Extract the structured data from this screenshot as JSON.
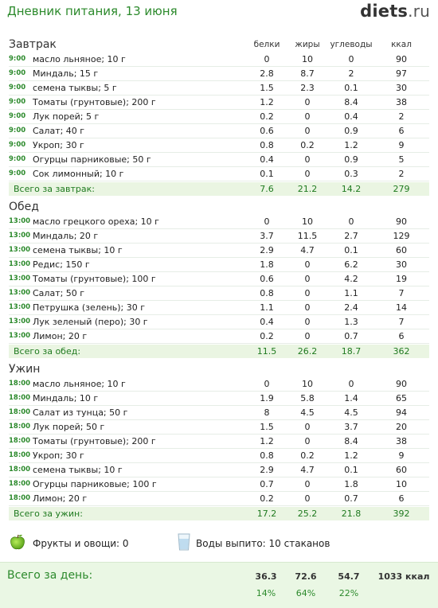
{
  "header": {
    "title": "Дневник питания, 13 июня",
    "logo_main": "diets",
    "logo_tld": ".ru"
  },
  "columns": {
    "protein": "белки",
    "fat": "жиры",
    "carbs": "углеводы",
    "kcal": "ккал"
  },
  "meals": [
    {
      "name": "Завтрак",
      "items": [
        {
          "time": "9:00",
          "name": "масло льняное; 10 г",
          "protein": "0",
          "fat": "10",
          "carbs": "0",
          "kcal": "90"
        },
        {
          "time": "9:00",
          "name": "Миндаль; 15 г",
          "protein": "2.8",
          "fat": "8.7",
          "carbs": "2",
          "kcal": "97"
        },
        {
          "time": "9:00",
          "name": "семена тыквы; 5 г",
          "protein": "1.5",
          "fat": "2.3",
          "carbs": "0.1",
          "kcal": "30"
        },
        {
          "time": "9:00",
          "name": "Томаты (грунтовые); 200 г",
          "protein": "1.2",
          "fat": "0",
          "carbs": "8.4",
          "kcal": "38"
        },
        {
          "time": "9:00",
          "name": "Лук порей; 5 г",
          "protein": "0.2",
          "fat": "0",
          "carbs": "0.4",
          "kcal": "2"
        },
        {
          "time": "9:00",
          "name": "Салат; 40 г",
          "protein": "0.6",
          "fat": "0",
          "carbs": "0.9",
          "kcal": "6"
        },
        {
          "time": "9:00",
          "name": "Укроп; 30 г",
          "protein": "0.8",
          "fat": "0.2",
          "carbs": "1.2",
          "kcal": "9"
        },
        {
          "time": "9:00",
          "name": "Огурцы парниковые; 50 г",
          "protein": "0.4",
          "fat": "0",
          "carbs": "0.9",
          "kcal": "5"
        },
        {
          "time": "9:00",
          "name": "Сок лимонный; 10 г",
          "protein": "0.1",
          "fat": "0",
          "carbs": "0.3",
          "kcal": "2"
        }
      ],
      "total": {
        "label": "Всего за завтрак:",
        "protein": "7.6",
        "fat": "21.2",
        "carbs": "14.2",
        "kcal": "279"
      }
    },
    {
      "name": "Обед",
      "items": [
        {
          "time": "13:00",
          "name": "масло грецкого ореха; 10 г",
          "protein": "0",
          "fat": "10",
          "carbs": "0",
          "kcal": "90"
        },
        {
          "time": "13:00",
          "name": "Миндаль; 20 г",
          "protein": "3.7",
          "fat": "11.5",
          "carbs": "2.7",
          "kcal": "129"
        },
        {
          "time": "13:00",
          "name": "семена тыквы; 10 г",
          "protein": "2.9",
          "fat": "4.7",
          "carbs": "0.1",
          "kcal": "60"
        },
        {
          "time": "13:00",
          "name": "Редис; 150 г",
          "protein": "1.8",
          "fat": "0",
          "carbs": "6.2",
          "kcal": "30"
        },
        {
          "time": "13:00",
          "name": "Томаты (грунтовые); 100 г",
          "protein": "0.6",
          "fat": "0",
          "carbs": "4.2",
          "kcal": "19"
        },
        {
          "time": "13:00",
          "name": "Салат; 50 г",
          "protein": "0.8",
          "fat": "0",
          "carbs": "1.1",
          "kcal": "7"
        },
        {
          "time": "13:00",
          "name": "Петрушка (зелень); 30 г",
          "protein": "1.1",
          "fat": "0",
          "carbs": "2.4",
          "kcal": "14"
        },
        {
          "time": "13:00",
          "name": "Лук зеленый (перо); 30 г",
          "protein": "0.4",
          "fat": "0",
          "carbs": "1.3",
          "kcal": "7"
        },
        {
          "time": "13:00",
          "name": "Лимон; 20 г",
          "protein": "0.2",
          "fat": "0",
          "carbs": "0.7",
          "kcal": "6"
        }
      ],
      "total": {
        "label": "Всего за обед:",
        "protein": "11.5",
        "fat": "26.2",
        "carbs": "18.7",
        "kcal": "362"
      }
    },
    {
      "name": "Ужин",
      "items": [
        {
          "time": "18:00",
          "name": "масло льняное; 10 г",
          "protein": "0",
          "fat": "10",
          "carbs": "0",
          "kcal": "90"
        },
        {
          "time": "18:00",
          "name": "Миндаль; 10 г",
          "protein": "1.9",
          "fat": "5.8",
          "carbs": "1.4",
          "kcal": "65"
        },
        {
          "time": "18:00",
          "name": "Салат из тунца; 50 г",
          "protein": "8",
          "fat": "4.5",
          "carbs": "4.5",
          "kcal": "94"
        },
        {
          "time": "18:00",
          "name": "Лук порей; 50 г",
          "protein": "1.5",
          "fat": "0",
          "carbs": "3.7",
          "kcal": "20"
        },
        {
          "time": "18:00",
          "name": "Томаты (грунтовые); 200 г",
          "protein": "1.2",
          "fat": "0",
          "carbs": "8.4",
          "kcal": "38"
        },
        {
          "time": "18:00",
          "name": "Укроп; 30 г",
          "protein": "0.8",
          "fat": "0.2",
          "carbs": "1.2",
          "kcal": "9"
        },
        {
          "time": "18:00",
          "name": "семена тыквы; 10 г",
          "protein": "2.9",
          "fat": "4.7",
          "carbs": "0.1",
          "kcal": "60"
        },
        {
          "time": "18:00",
          "name": "Огурцы парниковые; 100 г",
          "protein": "0.7",
          "fat": "0",
          "carbs": "1.8",
          "kcal": "10"
        },
        {
          "time": "18:00",
          "name": "Лимон; 20 г",
          "protein": "0.2",
          "fat": "0",
          "carbs": "0.7",
          "kcal": "6"
        }
      ],
      "total": {
        "label": "Всего за ужин:",
        "protein": "17.2",
        "fat": "25.2",
        "carbs": "21.8",
        "kcal": "392"
      }
    }
  ],
  "extras": {
    "fruits_label": "Фрукты и овощи: 0",
    "water_label": "Воды выпито: 10 стаканов",
    "fruits_icon": "apple-icon",
    "water_icon": "water-glass-icon"
  },
  "day_total": {
    "label": "Всего за день:",
    "protein": "36.3",
    "fat": "72.6",
    "carbs": "54.7",
    "kcal": "1033 ккал",
    "protein_pct": "14%",
    "fat_pct": "64%",
    "carbs_pct": "22%"
  },
  "colors": {
    "accent": "#2c8a2c",
    "total_bg": "#eaf5e2",
    "day_bg": "#eaf7e4"
  }
}
